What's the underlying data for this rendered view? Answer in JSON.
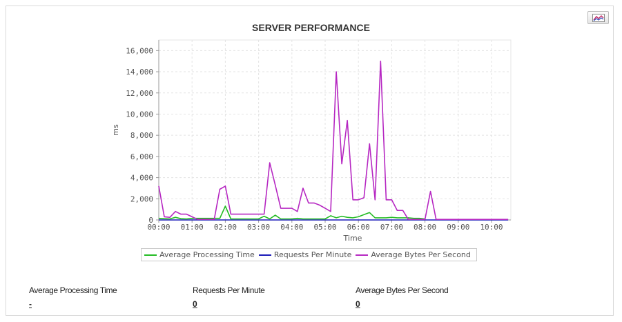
{
  "chart_data": {
    "type": "line",
    "title": "SERVER PERFORMANCE",
    "xlabel": "Time",
    "ylabel": "ms",
    "ylim": [
      0,
      17000
    ],
    "y_ticks": [
      "0",
      "2,000",
      "4,000",
      "6,000",
      "8,000",
      "10,000",
      "12,000",
      "14,000",
      "16,000"
    ],
    "x_ticks": [
      "00:00",
      "01:00",
      "02:00",
      "03:00",
      "04:00",
      "05:00",
      "06:00",
      "07:00",
      "08:00",
      "09:00",
      "10:00"
    ],
    "xlim": [
      "00:00",
      "10:30"
    ],
    "grid": true,
    "legend_position": "bottom",
    "series": [
      {
        "name": "Average Processing Time",
        "color": "#22bb22",
        "points": [
          [
            "00:00",
            150
          ],
          [
            "00:10",
            120
          ],
          [
            "00:20",
            100
          ],
          [
            "00:30",
            250
          ],
          [
            "00:40",
            120
          ],
          [
            "00:50",
            100
          ],
          [
            "01:00",
            150
          ],
          [
            "01:10",
            150
          ],
          [
            "01:20",
            150
          ],
          [
            "01:30",
            150
          ],
          [
            "01:40",
            150
          ],
          [
            "01:50",
            150
          ],
          [
            "02:00",
            1300
          ],
          [
            "02:10",
            100
          ],
          [
            "02:20",
            100
          ],
          [
            "02:30",
            100
          ],
          [
            "02:40",
            100
          ],
          [
            "02:50",
            100
          ],
          [
            "03:00",
            100
          ],
          [
            "03:10",
            350
          ],
          [
            "03:20",
            100
          ],
          [
            "03:30",
            450
          ],
          [
            "03:40",
            100
          ],
          [
            "03:50",
            100
          ],
          [
            "04:00",
            100
          ],
          [
            "04:10",
            150
          ],
          [
            "04:20",
            100
          ],
          [
            "04:30",
            100
          ],
          [
            "04:40",
            100
          ],
          [
            "04:50",
            100
          ],
          [
            "05:00",
            100
          ],
          [
            "05:10",
            400
          ],
          [
            "05:20",
            200
          ],
          [
            "05:30",
            350
          ],
          [
            "05:40",
            250
          ],
          [
            "05:50",
            200
          ],
          [
            "06:00",
            300
          ],
          [
            "06:10",
            500
          ],
          [
            "06:20",
            700
          ],
          [
            "06:30",
            200
          ],
          [
            "06:40",
            200
          ],
          [
            "06:50",
            200
          ],
          [
            "07:00",
            250
          ],
          [
            "07:10",
            200
          ],
          [
            "07:20",
            200
          ],
          [
            "07:30",
            200
          ],
          [
            "07:40",
            150
          ],
          [
            "07:50",
            150
          ],
          [
            "08:00",
            100
          ]
        ]
      },
      {
        "name": "Requests Per Minute",
        "color": "#1a1ab8",
        "points": [
          [
            "00:00",
            0
          ],
          [
            "01:00",
            0
          ],
          [
            "02:00",
            0
          ],
          [
            "03:00",
            0
          ],
          [
            "04:00",
            0
          ],
          [
            "05:00",
            0
          ],
          [
            "06:00",
            0
          ],
          [
            "07:00",
            0
          ],
          [
            "08:00",
            0
          ],
          [
            "09:00",
            0
          ],
          [
            "10:00",
            0
          ],
          [
            "10:30",
            0
          ]
        ]
      },
      {
        "name": "Average Bytes Per Second",
        "color": "#b627c2",
        "points": [
          [
            "00:00",
            3200
          ],
          [
            "00:10",
            300
          ],
          [
            "00:20",
            250
          ],
          [
            "00:30",
            800
          ],
          [
            "00:40",
            550
          ],
          [
            "00:50",
            550
          ],
          [
            "01:00",
            300
          ],
          [
            "01:10",
            50
          ],
          [
            "01:20",
            50
          ],
          [
            "01:30",
            50
          ],
          [
            "01:40",
            50
          ],
          [
            "01:50",
            2900
          ],
          [
            "02:00",
            3200
          ],
          [
            "02:10",
            550
          ],
          [
            "02:20",
            550
          ],
          [
            "02:30",
            550
          ],
          [
            "02:40",
            550
          ],
          [
            "02:50",
            550
          ],
          [
            "03:00",
            550
          ],
          [
            "03:10",
            550
          ],
          [
            "03:20",
            5400
          ],
          [
            "03:30",
            3300
          ],
          [
            "03:40",
            1100
          ],
          [
            "03:50",
            1100
          ],
          [
            "04:00",
            1100
          ],
          [
            "04:10",
            800
          ],
          [
            "04:20",
            3000
          ],
          [
            "04:30",
            1600
          ],
          [
            "04:40",
            1600
          ],
          [
            "04:50",
            1400
          ],
          [
            "05:00",
            1100
          ],
          [
            "05:10",
            800
          ],
          [
            "05:20",
            14000
          ],
          [
            "05:30",
            5300
          ],
          [
            "05:40",
            9400
          ],
          [
            "05:50",
            1900
          ],
          [
            "06:00",
            1900
          ],
          [
            "06:10",
            2100
          ],
          [
            "06:20",
            7200
          ],
          [
            "06:30",
            1900
          ],
          [
            "06:40",
            15000
          ],
          [
            "06:50",
            1900
          ],
          [
            "07:00",
            1900
          ],
          [
            "07:10",
            900
          ],
          [
            "07:20",
            900
          ],
          [
            "07:30",
            50
          ],
          [
            "07:40",
            50
          ],
          [
            "07:50",
            50
          ],
          [
            "08:00",
            50
          ],
          [
            "08:10",
            2700
          ],
          [
            "08:20",
            50
          ],
          [
            "08:30",
            50
          ],
          [
            "09:00",
            50
          ],
          [
            "10:00",
            50
          ],
          [
            "10:30",
            50
          ]
        ]
      }
    ]
  },
  "stats": [
    {
      "label": "Average Processing Time",
      "value": "-"
    },
    {
      "label": "Requests Per Minute",
      "value": "0"
    },
    {
      "label": "Average Bytes Per Second",
      "value": "0"
    }
  ],
  "toolbar": {
    "icon": "line-chart-icon"
  }
}
